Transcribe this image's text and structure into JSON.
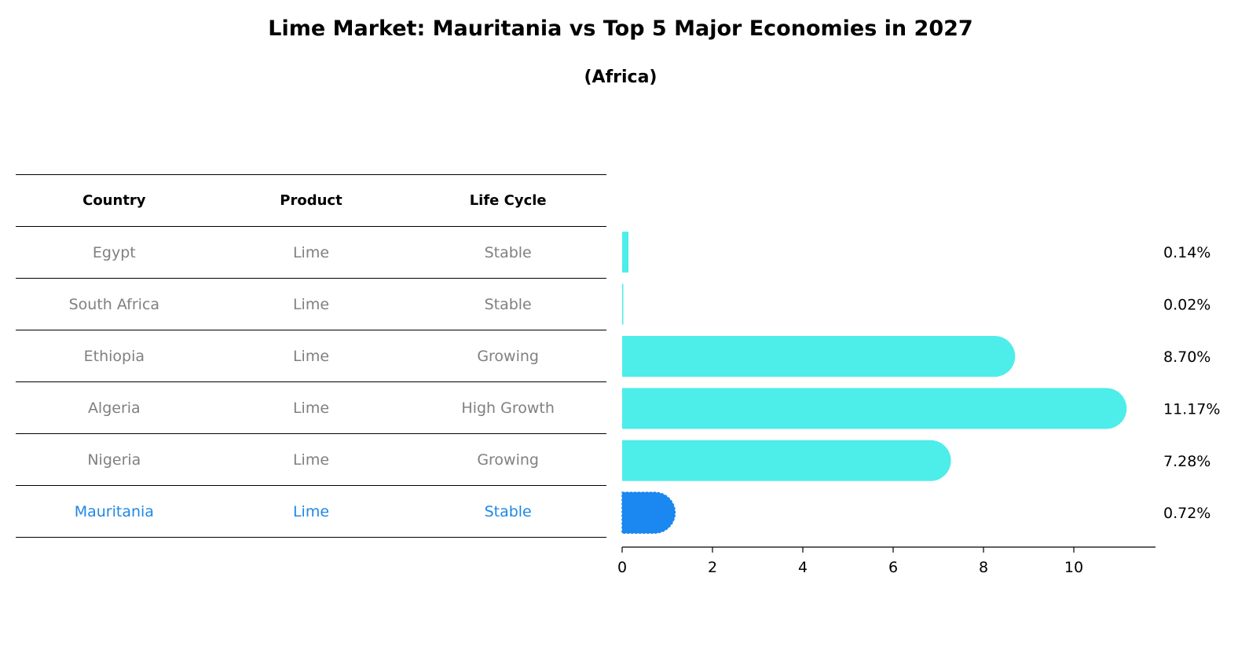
{
  "header": {
    "title": "Lime Market: Mauritania vs Top 5 Major Economies in 2027",
    "subtitle": "(Africa)"
  },
  "table": {
    "columns": [
      "Country",
      "Product",
      "Life Cycle"
    ],
    "rows": [
      {
        "country": "Egypt",
        "product": "Lime",
        "life_cycle": "Stable",
        "highlight": false
      },
      {
        "country": "South Africa",
        "product": "Lime",
        "life_cycle": "Stable",
        "highlight": false
      },
      {
        "country": "Ethiopia",
        "product": "Lime",
        "life_cycle": "Growing",
        "highlight": false
      },
      {
        "country": "Algeria",
        "product": "Lime",
        "life_cycle": "High Growth",
        "highlight": false
      },
      {
        "country": "Nigeria",
        "product": "Lime",
        "life_cycle": "Growing",
        "highlight": false
      },
      {
        "country": "Mauritania",
        "product": "Lime",
        "life_cycle": "Stable",
        "highlight": true
      }
    ]
  },
  "colors": {
    "bar": "#4dede9",
    "highlight_bar": "#1b87f0",
    "highlight_text": "#1e88e5",
    "muted_text": "#808080"
  },
  "chart_data": {
    "type": "bar",
    "orientation": "horizontal",
    "title": "Lime Market: Mauritania vs Top 5 Major Economies in 2027",
    "subtitle": "(Africa)",
    "categories": [
      "Egypt",
      "South Africa",
      "Ethiopia",
      "Algeria",
      "Nigeria",
      "Mauritania"
    ],
    "values": [
      0.14,
      0.02,
      8.7,
      11.17,
      7.28,
      0.72
    ],
    "value_labels": [
      "0.14%",
      "0.02%",
      "8.70%",
      "11.17%",
      "7.28%",
      "0.72%"
    ],
    "highlight": "Mauritania",
    "xlim": [
      0,
      11.7
    ],
    "xticks": [
      0,
      2,
      4,
      6,
      8,
      10
    ],
    "xlabel": "",
    "ylabel": "",
    "grid": false
  }
}
